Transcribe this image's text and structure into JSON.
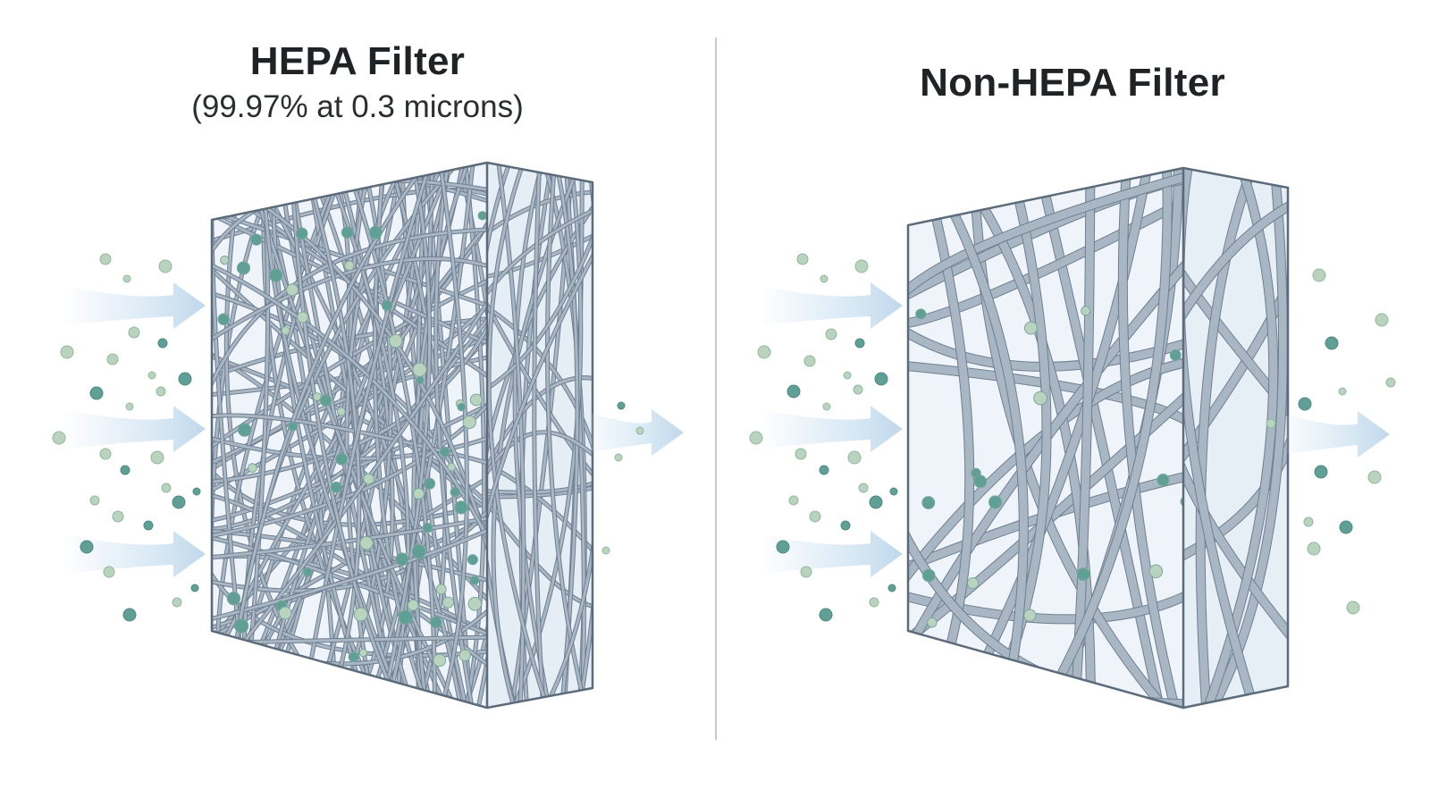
{
  "hepa": {
    "title": "HEPA Filter",
    "subtitle": "(99.97% at 0.3 microns)",
    "fiber_density": "dense"
  },
  "non_hepa": {
    "title": "Non-HEPA Filter",
    "fiber_density": "sparse"
  },
  "colors": {
    "fiber": "#a9b6c4",
    "fiber_edge": "#6f7f90",
    "frame": "#5c6b7a",
    "particle_teal": "#5f9f96",
    "particle_light": "#b9d3be",
    "airflow": "#cfe3f2",
    "divider": "#c8c8c8"
  },
  "icons": [
    "airflow-arrow-icon",
    "particle-icon"
  ]
}
